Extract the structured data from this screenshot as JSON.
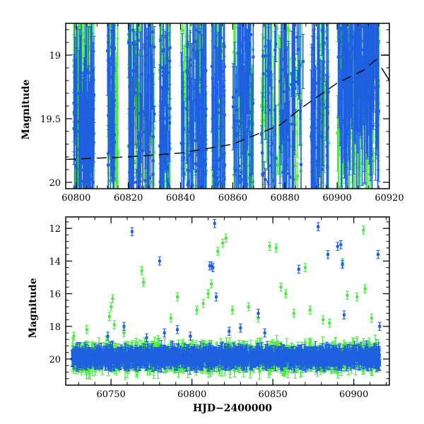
{
  "colors": {
    "green": "#4bea42",
    "blue": "#1f5fe0",
    "axis": "#000000",
    "model": "#000000"
  },
  "chart_data": [
    {
      "type": "scatter",
      "title": "",
      "xlabel": "",
      "ylabel": "Magnitude",
      "xlim": [
        60796,
        60920
      ],
      "ylim": [
        20.05,
        18.75
      ],
      "y_inverted": true,
      "grid": false,
      "xticks": [
        60800,
        60820,
        60840,
        60860,
        60880,
        60900,
        60920
      ],
      "xtick_labels": [
        "60800",
        "60820",
        "60840",
        "60860",
        "60880",
        "60900",
        "60920"
      ],
      "yticks": [
        19,
        19.5,
        20
      ],
      "ytick_labels": [
        "19",
        "19.5",
        "20"
      ],
      "series": [
        {
          "color": "green",
          "clusters": [
            {
              "x": [
                60799,
                60807
              ],
              "y": [
                18.7,
                20.05
              ],
              "density": 70
            },
            {
              "x": [
                60812,
                60816
              ],
              "y": [
                18.7,
                20.05
              ],
              "density": 35
            },
            {
              "x": [
                60820,
                60830
              ],
              "y": [
                18.7,
                20.05
              ],
              "density": 60
            },
            {
              "x": [
                60832,
                60836
              ],
              "y": [
                18.7,
                20.05
              ],
              "density": 30
            },
            {
              "x": [
                60840,
                60850
              ],
              "y": [
                18.7,
                20.05
              ],
              "density": 60
            },
            {
              "x": [
                60852,
                60857
              ],
              "y": [
                18.7,
                20.05
              ],
              "density": 40
            },
            {
              "x": [
                60860,
                60868
              ],
              "y": [
                18.7,
                20.05
              ],
              "density": 50
            },
            {
              "x": [
                60871,
                60887
              ],
              "y": [
                18.7,
                20.05
              ],
              "density": 60
            },
            {
              "x": [
                60890,
                60897
              ],
              "y": [
                18.7,
                20.05
              ],
              "density": 40
            },
            {
              "x": [
                60900,
                60916
              ],
              "y": [
                18.7,
                19.9
              ],
              "density": 110
            }
          ]
        },
        {
          "color": "blue",
          "clusters": [
            {
              "x": [
                60799,
                60807
              ],
              "y": [
                19.1,
                20.05
              ],
              "density": 90
            },
            {
              "x": [
                60812,
                60815
              ],
              "y": [
                18.8,
                20.05
              ],
              "density": 35
            },
            {
              "x": [
                60820,
                60830
              ],
              "y": [
                18.8,
                20.05
              ],
              "density": 80
            },
            {
              "x": [
                60832,
                60836
              ],
              "y": [
                18.8,
                20.05
              ],
              "density": 40
            },
            {
              "x": [
                60840,
                60850
              ],
              "y": [
                18.8,
                20.05
              ],
              "density": 80
            },
            {
              "x": [
                60852,
                60857
              ],
              "y": [
                18.8,
                20.05
              ],
              "density": 50
            },
            {
              "x": [
                60860,
                60868
              ],
              "y": [
                18.8,
                20.05
              ],
              "density": 60
            },
            {
              "x": [
                60871,
                60887
              ],
              "y": [
                18.8,
                20.05
              ],
              "density": 70
            },
            {
              "x": [
                60890,
                60897
              ],
              "y": [
                18.8,
                20.05
              ],
              "density": 50
            },
            {
              "x": [
                60900,
                60916
              ],
              "y": [
                18.75,
                19.6
              ],
              "density": 140
            }
          ]
        }
      ],
      "model_line": {
        "x": [
          60796,
          60820,
          60840,
          60860,
          60878,
          60886,
          60893,
          60900,
          60910,
          60917,
          60920
        ],
        "y": [
          19.82,
          19.8,
          19.77,
          19.7,
          19.55,
          19.42,
          19.32,
          19.22,
          19.12,
          19.0,
          19.0
        ]
      },
      "model_line_right": {
        "x": [
          60917,
          60920
        ],
        "y": [
          19.1,
          19.2
        ]
      }
    },
    {
      "type": "scatter",
      "title": "",
      "xlabel": "HJD−2400000",
      "ylabel": "Magnitude",
      "xlim": [
        60722,
        60922
      ],
      "ylim": [
        21.6,
        11.3
      ],
      "y_inverted": true,
      "grid": false,
      "xticks": [
        60750,
        60800,
        60850,
        60900
      ],
      "xtick_labels": [
        "60750",
        "60800",
        "60850",
        "60900"
      ],
      "yticks": [
        12,
        14,
        16,
        18,
        20
      ],
      "ytick_labels": [
        "12",
        "14",
        "16",
        "18",
        "20"
      ],
      "band": {
        "green": {
          "x": [
            60726,
            60916
          ],
          "y_center": 19.9,
          "spread": 0.9
        },
        "blue": {
          "x": [
            60726,
            60916
          ],
          "y_center": 19.9,
          "spread": 0.5
        }
      },
      "series": [
        {
          "color": "green",
          "outliers": [
            {
              "x": 60727,
              "y": 18.6
            },
            {
              "x": 60735,
              "y": 18.2
            },
            {
              "x": 60749,
              "y": 17.4
            },
            {
              "x": 60750,
              "y": 16.8
            },
            {
              "x": 60751,
              "y": 16.3
            },
            {
              "x": 60752,
              "y": 17.9
            },
            {
              "x": 60758,
              "y": 18.4
            },
            {
              "x": 60769,
              "y": 14.6
            },
            {
              "x": 60770,
              "y": 15.3
            },
            {
              "x": 60787,
              "y": 17.5
            },
            {
              "x": 60791,
              "y": 16.2
            },
            {
              "x": 60803,
              "y": 17.0
            },
            {
              "x": 60807,
              "y": 16.6
            },
            {
              "x": 60810,
              "y": 16.0
            },
            {
              "x": 60812,
              "y": 15.4
            },
            {
              "x": 60816,
              "y": 13.4
            },
            {
              "x": 60819,
              "y": 12.9
            },
            {
              "x": 60821,
              "y": 12.6
            },
            {
              "x": 60825,
              "y": 17.0
            },
            {
              "x": 60835,
              "y": 16.8
            },
            {
              "x": 60841,
              "y": 17.5
            },
            {
              "x": 60848,
              "y": 13.1
            },
            {
              "x": 60852,
              "y": 13.2
            },
            {
              "x": 60855,
              "y": 15.6
            },
            {
              "x": 60858,
              "y": 16.0
            },
            {
              "x": 60863,
              "y": 17.2
            },
            {
              "x": 60870,
              "y": 14.4
            },
            {
              "x": 60873,
              "y": 17.0
            },
            {
              "x": 60881,
              "y": 17.6
            },
            {
              "x": 60885,
              "y": 17.8
            },
            {
              "x": 60893,
              "y": 14.1
            },
            {
              "x": 60896,
              "y": 16.1
            },
            {
              "x": 60902,
              "y": 16.2
            },
            {
              "x": 60906,
              "y": 12.1
            },
            {
              "x": 60907,
              "y": 15.7
            },
            {
              "x": 60911,
              "y": 17.5
            }
          ]
        },
        {
          "color": "blue",
          "outliers": [
            {
              "x": 60748,
              "y": 18.6
            },
            {
              "x": 60758,
              "y": 18.0
            },
            {
              "x": 60763,
              "y": 12.2
            },
            {
              "x": 60772,
              "y": 18.7
            },
            {
              "x": 60780,
              "y": 14.0
            },
            {
              "x": 60783,
              "y": 18.4
            },
            {
              "x": 60791,
              "y": 18.2
            },
            {
              "x": 60799,
              "y": 18.6
            },
            {
              "x": 60811,
              "y": 14.3
            },
            {
              "x": 60812,
              "y": 14.3
            },
            {
              "x": 60813,
              "y": 14.4
            },
            {
              "x": 60814,
              "y": 11.7
            },
            {
              "x": 60815,
              "y": 16.2
            },
            {
              "x": 60823,
              "y": 18.3
            },
            {
              "x": 60830,
              "y": 18.1
            },
            {
              "x": 60841,
              "y": 17.2
            },
            {
              "x": 60845,
              "y": 18.4
            },
            {
              "x": 60866,
              "y": 14.5
            },
            {
              "x": 60878,
              "y": 11.9
            },
            {
              "x": 60884,
              "y": 13.6
            },
            {
              "x": 60890,
              "y": 13.1
            },
            {
              "x": 60892,
              "y": 13.0
            },
            {
              "x": 60893,
              "y": 14.2
            },
            {
              "x": 60894,
              "y": 17.3
            },
            {
              "x": 60915,
              "y": 13.6
            },
            {
              "x": 60916,
              "y": 18.0
            }
          ]
        }
      ]
    }
  ]
}
